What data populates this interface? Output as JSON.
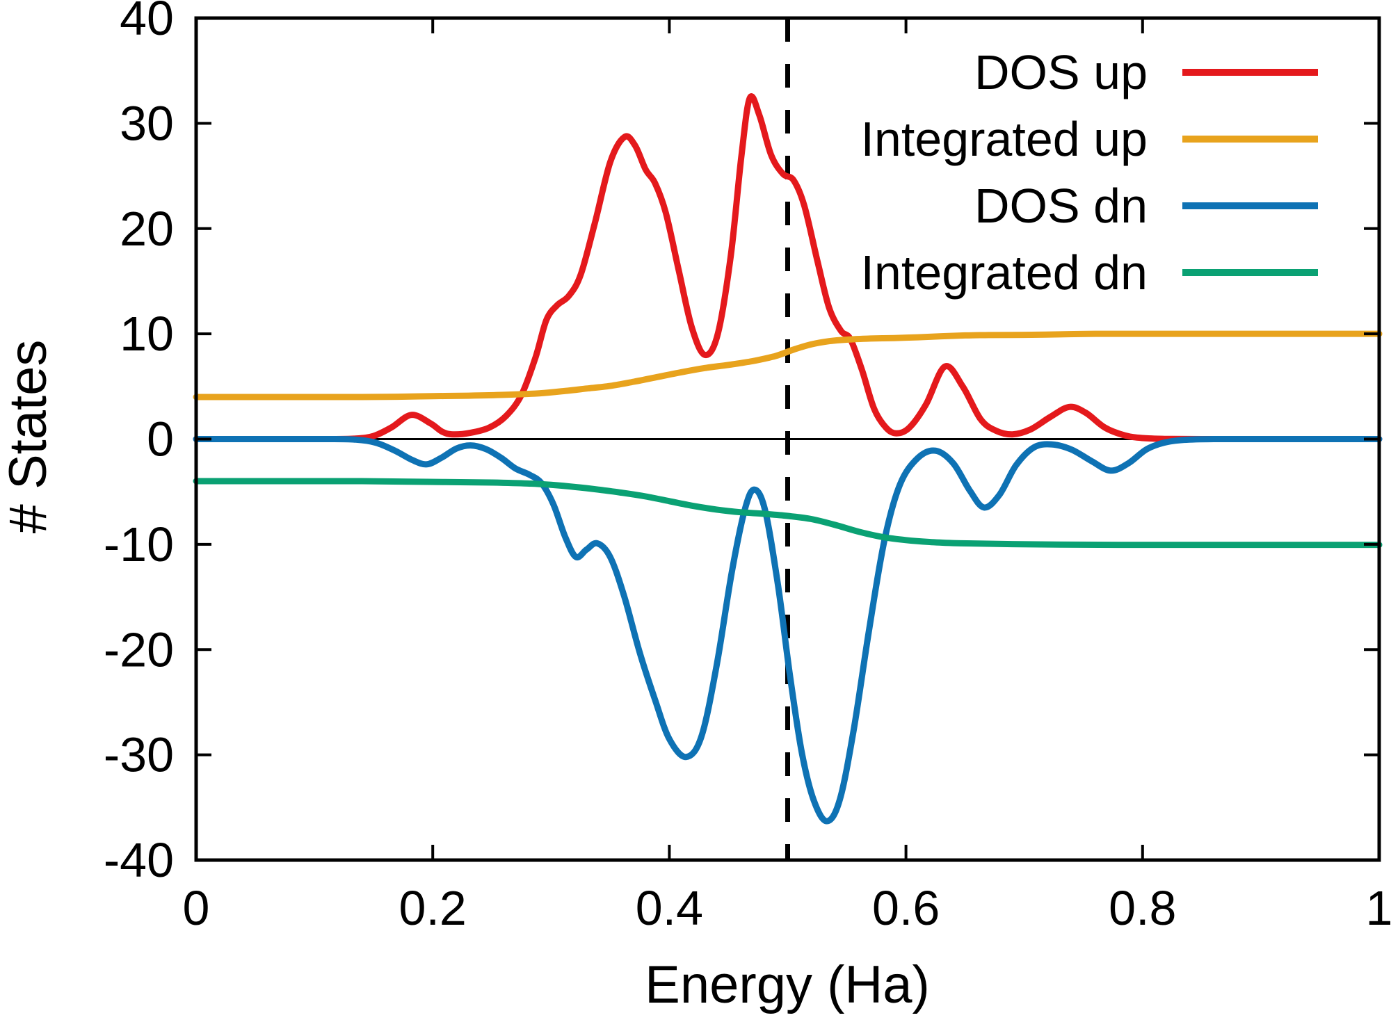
{
  "chart_data": {
    "type": "line",
    "title": "",
    "xlabel": "Energy (Ha)",
    "ylabel": "# States",
    "xlim": [
      0,
      1
    ],
    "ylim": [
      -40,
      40
    ],
    "grid": false,
    "x_tick_values": [
      0,
      0.2,
      0.4,
      0.6,
      0.8,
      1
    ],
    "x_tick_labels": [
      "0",
      "0.2",
      "0.4",
      "0.6",
      "0.8",
      "1"
    ],
    "y_tick_values": [
      -40,
      -30,
      -20,
      -10,
      0,
      10,
      20,
      30,
      40
    ],
    "y_tick_labels": [
      "-40",
      "-30",
      "-20",
      "-10",
      "0",
      "10",
      "20",
      "30",
      "40"
    ],
    "zero_line": true,
    "annotations": [
      {
        "kind": "vline",
        "name": "fermi-level",
        "x": 0.5,
        "style": "dashed",
        "color": "#000000"
      }
    ],
    "legend": {
      "position": "top-right"
    },
    "series": [
      {
        "name": "DOS up",
        "color": "#e4191c",
        "points": [
          [
            0,
            0
          ],
          [
            0.06,
            0
          ],
          [
            0.11,
            0
          ],
          [
            0.135,
            0.05
          ],
          [
            0.15,
            0.3
          ],
          [
            0.165,
            1.1
          ],
          [
            0.182,
            2.3
          ],
          [
            0.198,
            1.5
          ],
          [
            0.208,
            0.7
          ],
          [
            0.217,
            0.45
          ],
          [
            0.232,
            0.6
          ],
          [
            0.248,
            1.1
          ],
          [
            0.262,
            2.2
          ],
          [
            0.275,
            4.2
          ],
          [
            0.287,
            7.8
          ],
          [
            0.296,
            11.3
          ],
          [
            0.305,
            12.7
          ],
          [
            0.315,
            13.6
          ],
          [
            0.325,
            15.6
          ],
          [
            0.337,
            20.5
          ],
          [
            0.35,
            26.3
          ],
          [
            0.362,
            28.7
          ],
          [
            0.371,
            27.9
          ],
          [
            0.38,
            25.6
          ],
          [
            0.388,
            24.3
          ],
          [
            0.397,
            21.5
          ],
          [
            0.408,
            16.0
          ],
          [
            0.419,
            10.6
          ],
          [
            0.43,
            8.0
          ],
          [
            0.441,
            10.0
          ],
          [
            0.452,
            17.5
          ],
          [
            0.461,
            27.0
          ],
          [
            0.468,
            32.4
          ],
          [
            0.476,
            30.8
          ],
          [
            0.486,
            27.0
          ],
          [
            0.496,
            25.2
          ],
          [
            0.505,
            24.6
          ],
          [
            0.514,
            22.2
          ],
          [
            0.525,
            17.0
          ],
          [
            0.535,
            12.5
          ],
          [
            0.545,
            10.3
          ],
          [
            0.553,
            9.5
          ],
          [
            0.563,
            6.5
          ],
          [
            0.573,
            2.9
          ],
          [
            0.583,
            1.1
          ],
          [
            0.592,
            0.55
          ],
          [
            0.603,
            1.1
          ],
          [
            0.617,
            3.3
          ],
          [
            0.633,
            6.9
          ],
          [
            0.648,
            5.0
          ],
          [
            0.663,
            1.9
          ],
          [
            0.676,
            0.8
          ],
          [
            0.69,
            0.45
          ],
          [
            0.705,
            0.9
          ],
          [
            0.722,
            2.1
          ],
          [
            0.738,
            3.05
          ],
          [
            0.752,
            2.5
          ],
          [
            0.768,
            1.1
          ],
          [
            0.785,
            0.35
          ],
          [
            0.8,
            0.1
          ],
          [
            0.82,
            0.02
          ],
          [
            0.85,
            0
          ],
          [
            0.92,
            0
          ],
          [
            1,
            0
          ]
        ]
      },
      {
        "name": "Integrated up",
        "color": "#e8a31d",
        "points": [
          [
            0,
            4
          ],
          [
            0.08,
            4
          ],
          [
            0.14,
            4
          ],
          [
            0.17,
            4.02
          ],
          [
            0.2,
            4.08
          ],
          [
            0.23,
            4.12
          ],
          [
            0.26,
            4.2
          ],
          [
            0.29,
            4.35
          ],
          [
            0.31,
            4.55
          ],
          [
            0.33,
            4.8
          ],
          [
            0.35,
            5.05
          ],
          [
            0.37,
            5.45
          ],
          [
            0.39,
            5.9
          ],
          [
            0.41,
            6.35
          ],
          [
            0.43,
            6.75
          ],
          [
            0.45,
            7.05
          ],
          [
            0.47,
            7.4
          ],
          [
            0.49,
            7.9
          ],
          [
            0.505,
            8.5
          ],
          [
            0.52,
            9.0
          ],
          [
            0.535,
            9.3
          ],
          [
            0.55,
            9.45
          ],
          [
            0.57,
            9.55
          ],
          [
            0.59,
            9.6
          ],
          [
            0.61,
            9.67
          ],
          [
            0.63,
            9.77
          ],
          [
            0.65,
            9.85
          ],
          [
            0.67,
            9.88
          ],
          [
            0.7,
            9.9
          ],
          [
            0.73,
            9.95
          ],
          [
            0.76,
            10
          ],
          [
            0.85,
            10
          ],
          [
            1,
            10
          ]
        ]
      },
      {
        "name": "DOS dn",
        "color": "#0e72b4",
        "points": [
          [
            0,
            0
          ],
          [
            0.06,
            0
          ],
          [
            0.11,
            0
          ],
          [
            0.135,
            -0.05
          ],
          [
            0.152,
            -0.35
          ],
          [
            0.168,
            -1.1
          ],
          [
            0.183,
            -2.0
          ],
          [
            0.195,
            -2.4
          ],
          [
            0.207,
            -1.8
          ],
          [
            0.22,
            -0.9
          ],
          [
            0.232,
            -0.6
          ],
          [
            0.245,
            -0.95
          ],
          [
            0.258,
            -1.8
          ],
          [
            0.27,
            -2.8
          ],
          [
            0.282,
            -3.4
          ],
          [
            0.292,
            -4.2
          ],
          [
            0.302,
            -6.2
          ],
          [
            0.312,
            -9.3
          ],
          [
            0.321,
            -11.2
          ],
          [
            0.33,
            -10.5
          ],
          [
            0.339,
            -9.9
          ],
          [
            0.35,
            -11.2
          ],
          [
            0.362,
            -15.0
          ],
          [
            0.375,
            -20.3
          ],
          [
            0.388,
            -24.8
          ],
          [
            0.4,
            -28.5
          ],
          [
            0.414,
            -30.2
          ],
          [
            0.427,
            -28.3
          ],
          [
            0.44,
            -21.5
          ],
          [
            0.453,
            -12.5
          ],
          [
            0.464,
            -6.6
          ],
          [
            0.472,
            -4.8
          ],
          [
            0.481,
            -6.8
          ],
          [
            0.492,
            -14.0
          ],
          [
            0.502,
            -22.5
          ],
          [
            0.512,
            -29.8
          ],
          [
            0.522,
            -34.3
          ],
          [
            0.533,
            -36.3
          ],
          [
            0.544,
            -34.3
          ],
          [
            0.556,
            -27.5
          ],
          [
            0.569,
            -18.0
          ],
          [
            0.582,
            -9.5
          ],
          [
            0.595,
            -4.3
          ],
          [
            0.61,
            -1.8
          ],
          [
            0.625,
            -1.1
          ],
          [
            0.64,
            -2.3
          ],
          [
            0.654,
            -4.9
          ],
          [
            0.666,
            -6.5
          ],
          [
            0.679,
            -5.3
          ],
          [
            0.693,
            -2.5
          ],
          [
            0.708,
            -0.8
          ],
          [
            0.723,
            -0.5
          ],
          [
            0.74,
            -1.0
          ],
          [
            0.757,
            -2.1
          ],
          [
            0.773,
            -3.0
          ],
          [
            0.788,
            -2.3
          ],
          [
            0.803,
            -1.0
          ],
          [
            0.818,
            -0.35
          ],
          [
            0.835,
            -0.08
          ],
          [
            0.86,
            0
          ],
          [
            0.93,
            0
          ],
          [
            1,
            0
          ]
        ]
      },
      {
        "name": "Integrated dn",
        "color": "#0aa173",
        "points": [
          [
            0,
            -4
          ],
          [
            0.08,
            -4
          ],
          [
            0.14,
            -4
          ],
          [
            0.18,
            -4.04
          ],
          [
            0.21,
            -4.08
          ],
          [
            0.25,
            -4.13
          ],
          [
            0.28,
            -4.22
          ],
          [
            0.3,
            -4.35
          ],
          [
            0.32,
            -4.55
          ],
          [
            0.34,
            -4.8
          ],
          [
            0.36,
            -5.1
          ],
          [
            0.38,
            -5.45
          ],
          [
            0.4,
            -5.9
          ],
          [
            0.42,
            -6.35
          ],
          [
            0.44,
            -6.7
          ],
          [
            0.46,
            -6.95
          ],
          [
            0.48,
            -7.1
          ],
          [
            0.5,
            -7.3
          ],
          [
            0.52,
            -7.6
          ],
          [
            0.54,
            -8.15
          ],
          [
            0.56,
            -8.8
          ],
          [
            0.58,
            -9.3
          ],
          [
            0.6,
            -9.6
          ],
          [
            0.62,
            -9.78
          ],
          [
            0.64,
            -9.88
          ],
          [
            0.66,
            -9.93
          ],
          [
            0.69,
            -9.98
          ],
          [
            0.73,
            -10.02
          ],
          [
            0.78,
            -10.05
          ],
          [
            0.85,
            -10.05
          ],
          [
            1,
            -10.05
          ]
        ]
      }
    ]
  }
}
